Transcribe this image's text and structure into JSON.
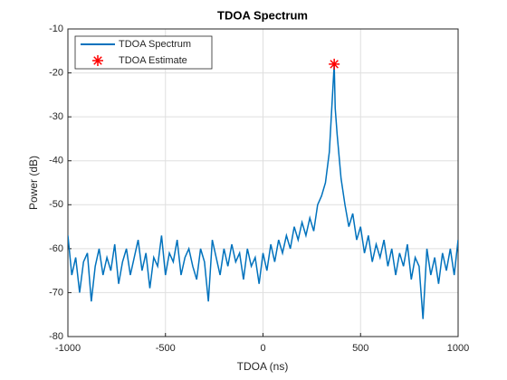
{
  "chart_data": {
    "type": "line",
    "title": "TDOA Spectrum",
    "xlabel": "TDOA (ns)",
    "ylabel": "Power (dB)",
    "xlim": [
      -1000,
      1000
    ],
    "ylim": [
      -80,
      -10
    ],
    "xticks": [
      -1000,
      -500,
      0,
      500,
      1000
    ],
    "yticks": [
      -80,
      -70,
      -60,
      -50,
      -40,
      -30,
      -20,
      -10
    ],
    "grid": true,
    "legend": "upper left",
    "series": [
      {
        "name": "TDOA Spectrum",
        "color": "#0072bd",
        "x": [
          -1000,
          -980,
          -960,
          -940,
          -920,
          -900,
          -880,
          -860,
          -840,
          -820,
          -800,
          -780,
          -760,
          -740,
          -720,
          -700,
          -680,
          -660,
          -640,
          -620,
          -600,
          -580,
          -560,
          -540,
          -520,
          -500,
          -480,
          -460,
          -440,
          -420,
          -400,
          -380,
          -360,
          -340,
          -320,
          -300,
          -280,
          -260,
          -240,
          -220,
          -200,
          -180,
          -160,
          -140,
          -120,
          -100,
          -80,
          -60,
          -40,
          -20,
          0,
          20,
          40,
          60,
          80,
          100,
          120,
          140,
          160,
          180,
          200,
          220,
          240,
          260,
          280,
          300,
          320,
          340,
          350,
          360,
          365,
          370,
          380,
          400,
          420,
          440,
          460,
          480,
          500,
          520,
          540,
          560,
          580,
          600,
          620,
          640,
          660,
          680,
          700,
          720,
          740,
          760,
          780,
          800,
          820,
          840,
          860,
          880,
          900,
          920,
          940,
          960,
          980,
          1000
        ],
        "values": [
          -57,
          -66,
          -62,
          -70,
          -63,
          -61,
          -72,
          -64,
          -60,
          -66,
          -62,
          -65,
          -59,
          -68,
          -63,
          -60,
          -66,
          -62,
          -58,
          -65,
          -61,
          -69,
          -62,
          -64,
          -57,
          -66,
          -61,
          -63,
          -58,
          -66,
          -62,
          -60,
          -64,
          -67,
          -60,
          -63,
          -72,
          -58,
          -62,
          -66,
          -60,
          -64,
          -59,
          -63,
          -61,
          -67,
          -60,
          -64,
          -62,
          -68,
          -61,
          -65,
          -59,
          -63,
          -58,
          -61,
          -57,
          -60,
          -55,
          -58,
          -54,
          -57,
          -53,
          -56,
          -50,
          -48,
          -45,
          -38,
          -30,
          -22,
          -18,
          -28,
          -34,
          -44,
          -50,
          -55,
          -52,
          -58,
          -55,
          -61,
          -57,
          -63,
          -59,
          -62,
          -58,
          -64,
          -60,
          -66,
          -61,
          -64,
          -59,
          -67,
          -62,
          -64,
          -76,
          -60,
          -66,
          -62,
          -68,
          -61,
          -65,
          -60,
          -66,
          -58
        ]
      },
      {
        "name": "TDOA Estimate",
        "type": "scatter",
        "marker": "asterisk",
        "color": "#ff0000",
        "x": [
          365
        ],
        "values": [
          -18
        ]
      }
    ]
  }
}
